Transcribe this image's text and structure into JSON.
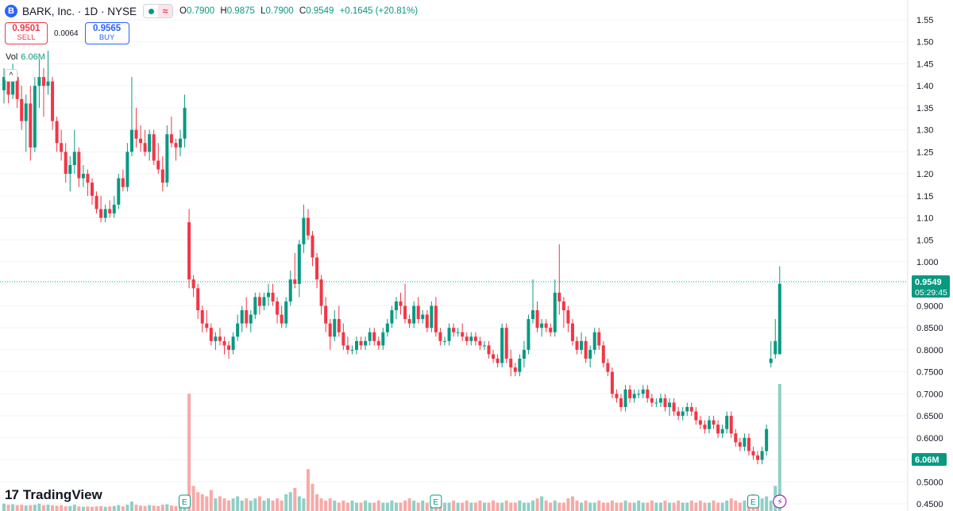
{
  "header": {
    "logo_letter": "B",
    "title": "BARK, Inc. · 1D · NYSE",
    "open_label": "O",
    "open": "0.7900",
    "high_label": "H",
    "high": "0.9875",
    "low_label": "L",
    "low": "0.7900",
    "close_label": "C",
    "close": "0.9549",
    "change": "+0.1645 (+20.81%)"
  },
  "trade": {
    "sell_price": "0.9501",
    "sell_label": "SELL",
    "spread": "0.0064",
    "buy_price": "0.9565",
    "buy_label": "BUY"
  },
  "volume": {
    "label": "Vol",
    "value": "6.06M"
  },
  "brand": {
    "logo": "17",
    "name": "TradingView"
  },
  "colors": {
    "up": "#089981",
    "down": "#f23645",
    "up_vol": "#8fcfc5",
    "down_vol": "#f7a9a7",
    "grid": "#f0f3fa"
  },
  "chart_data": {
    "type": "candlestick",
    "y_ticks": [
      "1.55",
      "1.50",
      "1.45",
      "1.40",
      "1.35",
      "1.30",
      "1.25",
      "1.20",
      "1.15",
      "1.10",
      "1.05",
      "1.000",
      "0.9500",
      "0.9000",
      "0.8500",
      "0.8000",
      "0.7500",
      "0.7000",
      "0.6500",
      "0.6000",
      "0.5500",
      "0.5000",
      "0.4500"
    ],
    "ylim": [
      0.45,
      1.55
    ],
    "last_price": "0.9549",
    "countdown": "05:29:45",
    "volume_last": "6.06M",
    "events": [
      {
        "bar": 41,
        "label": "E"
      },
      {
        "bar": 98,
        "label": "E"
      },
      {
        "bar": 170,
        "label": "E"
      }
    ],
    "current_bar_icon": "lightning-icon",
    "ohlc": [
      [
        1.39,
        1.44,
        1.36,
        1.42
      ],
      [
        1.42,
        1.43,
        1.36,
        1.38
      ],
      [
        1.38,
        1.45,
        1.37,
        1.42
      ],
      [
        1.42,
        1.43,
        1.35,
        1.37
      ],
      [
        1.37,
        1.4,
        1.3,
        1.32
      ],
      [
        1.32,
        1.38,
        1.25,
        1.36
      ],
      [
        1.36,
        1.4,
        1.23,
        1.26
      ],
      [
        1.26,
        1.42,
        1.25,
        1.4
      ],
      [
        1.4,
        1.46,
        1.35,
        1.42
      ],
      [
        1.42,
        1.44,
        1.33,
        1.4
      ],
      [
        1.4,
        1.48,
        1.38,
        1.41
      ],
      [
        1.41,
        1.42,
        1.3,
        1.32
      ],
      [
        1.32,
        1.33,
        1.25,
        1.27
      ],
      [
        1.27,
        1.3,
        1.23,
        1.25
      ],
      [
        1.25,
        1.27,
        1.18,
        1.2
      ],
      [
        1.2,
        1.24,
        1.16,
        1.22
      ],
      [
        1.22,
        1.3,
        1.2,
        1.25
      ],
      [
        1.25,
        1.26,
        1.17,
        1.19
      ],
      [
        1.19,
        1.22,
        1.17,
        1.2
      ],
      [
        1.2,
        1.21,
        1.15,
        1.18
      ],
      [
        1.18,
        1.19,
        1.13,
        1.15
      ],
      [
        1.15,
        1.16,
        1.11,
        1.12
      ],
      [
        1.12,
        1.15,
        1.09,
        1.1
      ],
      [
        1.1,
        1.13,
        1.09,
        1.12
      ],
      [
        1.12,
        1.14,
        1.1,
        1.11
      ],
      [
        1.11,
        1.15,
        1.1,
        1.13
      ],
      [
        1.13,
        1.2,
        1.12,
        1.19
      ],
      [
        1.19,
        1.21,
        1.16,
        1.17
      ],
      [
        1.17,
        1.27,
        1.16,
        1.25
      ],
      [
        1.25,
        1.42,
        1.24,
        1.3
      ],
      [
        1.3,
        1.35,
        1.26,
        1.28
      ],
      [
        1.28,
        1.31,
        1.25,
        1.27
      ],
      [
        1.27,
        1.3,
        1.24,
        1.25
      ],
      [
        1.25,
        1.3,
        1.23,
        1.29
      ],
      [
        1.29,
        1.3,
        1.22,
        1.23
      ],
      [
        1.23,
        1.27,
        1.2,
        1.21
      ],
      [
        1.21,
        1.24,
        1.16,
        1.18
      ],
      [
        1.18,
        1.31,
        1.17,
        1.29
      ],
      [
        1.29,
        1.33,
        1.26,
        1.27
      ],
      [
        1.27,
        1.28,
        1.23,
        1.26
      ],
      [
        1.26,
        1.3,
        1.24,
        1.28
      ],
      [
        1.28,
        1.38,
        1.26,
        1.35
      ],
      [
        1.09,
        1.12,
        0.94,
        0.96
      ],
      [
        0.96,
        0.97,
        0.92,
        0.94
      ],
      [
        0.94,
        0.95,
        0.87,
        0.89
      ],
      [
        0.89,
        0.9,
        0.84,
        0.86
      ],
      [
        0.86,
        0.89,
        0.84,
        0.85
      ],
      [
        0.85,
        0.86,
        0.81,
        0.82
      ],
      [
        0.82,
        0.84,
        0.8,
        0.83
      ],
      [
        0.83,
        0.85,
        0.81,
        0.82
      ],
      [
        0.82,
        0.83,
        0.79,
        0.81
      ],
      [
        0.81,
        0.82,
        0.78,
        0.8
      ],
      [
        0.8,
        0.84,
        0.79,
        0.83
      ],
      [
        0.83,
        0.88,
        0.82,
        0.86
      ],
      [
        0.86,
        0.9,
        0.84,
        0.89
      ],
      [
        0.89,
        0.92,
        0.85,
        0.86
      ],
      [
        0.86,
        0.89,
        0.84,
        0.88
      ],
      [
        0.88,
        0.93,
        0.87,
        0.92
      ],
      [
        0.92,
        0.93,
        0.88,
        0.9
      ],
      [
        0.9,
        0.93,
        0.89,
        0.92
      ],
      [
        0.92,
        0.95,
        0.9,
        0.93
      ],
      [
        0.93,
        0.95,
        0.9,
        0.91
      ],
      [
        0.91,
        0.92,
        0.86,
        0.88
      ],
      [
        0.88,
        0.9,
        0.85,
        0.86
      ],
      [
        0.86,
        0.92,
        0.85,
        0.91
      ],
      [
        0.91,
        0.98,
        0.9,
        0.96
      ],
      [
        0.96,
        1.02,
        0.94,
        0.95
      ],
      [
        0.95,
        1.05,
        0.92,
        1.04
      ],
      [
        1.04,
        1.13,
        1.02,
        1.1
      ],
      [
        1.1,
        1.12,
        1.05,
        1.06
      ],
      [
        1.06,
        1.07,
        0.99,
        1.01
      ],
      [
        1.01,
        1.02,
        0.94,
        0.96
      ],
      [
        0.96,
        0.97,
        0.88,
        0.9
      ],
      [
        0.9,
        0.92,
        0.84,
        0.86
      ],
      [
        0.86,
        0.87,
        0.8,
        0.83
      ],
      [
        0.83,
        0.89,
        0.82,
        0.87
      ],
      [
        0.87,
        0.9,
        0.83,
        0.84
      ],
      [
        0.84,
        0.86,
        0.8,
        0.81
      ],
      [
        0.81,
        0.83,
        0.79,
        0.8
      ],
      [
        0.8,
        0.81,
        0.79,
        0.8
      ],
      [
        0.8,
        0.83,
        0.79,
        0.82
      ],
      [
        0.82,
        0.83,
        0.8,
        0.81
      ],
      [
        0.81,
        0.83,
        0.8,
        0.82
      ],
      [
        0.82,
        0.85,
        0.81,
        0.84
      ],
      [
        0.84,
        0.85,
        0.81,
        0.82
      ],
      [
        0.82,
        0.83,
        0.8,
        0.81
      ],
      [
        0.81,
        0.85,
        0.8,
        0.84
      ],
      [
        0.84,
        0.87,
        0.83,
        0.86
      ],
      [
        0.86,
        0.9,
        0.85,
        0.89
      ],
      [
        0.89,
        0.92,
        0.87,
        0.91
      ],
      [
        0.91,
        0.93,
        0.88,
        0.9
      ],
      [
        0.9,
        0.95,
        0.86,
        0.87
      ],
      [
        0.87,
        0.88,
        0.85,
        0.86
      ],
      [
        0.86,
        0.91,
        0.85,
        0.9
      ],
      [
        0.9,
        0.92,
        0.86,
        0.87
      ],
      [
        0.87,
        0.89,
        0.86,
        0.88
      ],
      [
        0.88,
        0.89,
        0.84,
        0.85
      ],
      [
        0.85,
        0.91,
        0.84,
        0.9
      ],
      [
        0.9,
        0.92,
        0.83,
        0.84
      ],
      [
        0.84,
        0.85,
        0.81,
        0.82
      ],
      [
        0.82,
        0.83,
        0.81,
        0.82
      ],
      [
        0.82,
        0.86,
        0.81,
        0.85
      ],
      [
        0.85,
        0.86,
        0.83,
        0.84
      ],
      [
        0.84,
        0.85,
        0.83,
        0.84
      ],
      [
        0.84,
        0.86,
        0.82,
        0.83
      ],
      [
        0.83,
        0.84,
        0.81,
        0.82
      ],
      [
        0.82,
        0.84,
        0.81,
        0.83
      ],
      [
        0.83,
        0.84,
        0.81,
        0.82
      ],
      [
        0.82,
        0.83,
        0.8,
        0.81
      ],
      [
        0.81,
        0.82,
        0.8,
        0.81
      ],
      [
        0.81,
        0.82,
        0.78,
        0.79
      ],
      [
        0.79,
        0.8,
        0.77,
        0.78
      ],
      [
        0.78,
        0.79,
        0.76,
        0.77
      ],
      [
        0.77,
        0.86,
        0.76,
        0.85
      ],
      [
        0.85,
        0.86,
        0.77,
        0.78
      ],
      [
        0.78,
        0.8,
        0.74,
        0.76
      ],
      [
        0.76,
        0.77,
        0.74,
        0.75
      ],
      [
        0.75,
        0.79,
        0.74,
        0.78
      ],
      [
        0.78,
        0.82,
        0.76,
        0.8
      ],
      [
        0.8,
        0.88,
        0.79,
        0.87
      ],
      [
        0.87,
        0.96,
        0.86,
        0.89
      ],
      [
        0.89,
        0.91,
        0.84,
        0.85
      ],
      [
        0.85,
        0.87,
        0.83,
        0.86
      ],
      [
        0.86,
        0.87,
        0.84,
        0.85
      ],
      [
        0.85,
        0.86,
        0.83,
        0.84
      ],
      [
        0.84,
        0.96,
        0.83,
        0.93
      ],
      [
        0.93,
        1.04,
        0.88,
        0.91
      ],
      [
        0.91,
        0.92,
        0.85,
        0.89
      ],
      [
        0.89,
        0.9,
        0.84,
        0.86
      ],
      [
        0.86,
        0.87,
        0.81,
        0.82
      ],
      [
        0.82,
        0.83,
        0.79,
        0.8
      ],
      [
        0.8,
        0.84,
        0.79,
        0.82
      ],
      [
        0.82,
        0.83,
        0.77,
        0.78
      ],
      [
        0.78,
        0.81,
        0.76,
        0.8
      ],
      [
        0.8,
        0.85,
        0.79,
        0.84
      ],
      [
        0.84,
        0.85,
        0.8,
        0.81
      ],
      [
        0.81,
        0.82,
        0.76,
        0.77
      ],
      [
        0.77,
        0.78,
        0.74,
        0.75
      ],
      [
        0.75,
        0.76,
        0.69,
        0.7
      ],
      [
        0.7,
        0.71,
        0.68,
        0.69
      ],
      [
        0.69,
        0.7,
        0.66,
        0.67
      ],
      [
        0.67,
        0.72,
        0.66,
        0.71
      ],
      [
        0.71,
        0.72,
        0.68,
        0.69
      ],
      [
        0.69,
        0.71,
        0.68,
        0.7
      ],
      [
        0.7,
        0.71,
        0.69,
        0.7
      ],
      [
        0.7,
        0.72,
        0.69,
        0.71
      ],
      [
        0.71,
        0.72,
        0.68,
        0.69
      ],
      [
        0.69,
        0.7,
        0.67,
        0.68
      ],
      [
        0.68,
        0.69,
        0.67,
        0.68
      ],
      [
        0.68,
        0.7,
        0.67,
        0.69
      ],
      [
        0.69,
        0.7,
        0.66,
        0.67
      ],
      [
        0.67,
        0.69,
        0.65,
        0.68
      ],
      [
        0.68,
        0.69,
        0.65,
        0.66
      ],
      [
        0.66,
        0.67,
        0.64,
        0.65
      ],
      [
        0.65,
        0.67,
        0.64,
        0.66
      ],
      [
        0.66,
        0.68,
        0.65,
        0.67
      ],
      [
        0.67,
        0.68,
        0.65,
        0.66
      ],
      [
        0.66,
        0.67,
        0.63,
        0.64
      ],
      [
        0.64,
        0.65,
        0.62,
        0.63
      ],
      [
        0.63,
        0.64,
        0.61,
        0.62
      ],
      [
        0.62,
        0.65,
        0.61,
        0.64
      ],
      [
        0.64,
        0.65,
        0.62,
        0.63
      ],
      [
        0.63,
        0.64,
        0.6,
        0.61
      ],
      [
        0.61,
        0.63,
        0.6,
        0.62
      ],
      [
        0.62,
        0.66,
        0.61,
        0.65
      ],
      [
        0.65,
        0.66,
        0.6,
        0.61
      ],
      [
        0.61,
        0.62,
        0.58,
        0.59
      ],
      [
        0.59,
        0.6,
        0.57,
        0.58
      ],
      [
        0.58,
        0.61,
        0.57,
        0.6
      ],
      [
        0.6,
        0.61,
        0.56,
        0.57
      ],
      [
        0.57,
        0.58,
        0.55,
        0.56
      ],
      [
        0.56,
        0.57,
        0.54,
        0.55
      ],
      [
        0.55,
        0.58,
        0.54,
        0.57
      ],
      [
        0.57,
        0.63,
        0.56,
        0.62
      ],
      [
        0.77,
        0.82,
        0.76,
        0.78
      ],
      [
        0.79,
        0.87,
        0.78,
        0.82
      ],
      [
        0.79,
        0.99,
        0.79,
        0.95
      ]
    ],
    "volume": [
      0.35,
      0.3,
      0.32,
      0.28,
      0.3,
      0.26,
      0.28,
      0.3,
      0.35,
      0.28,
      0.3,
      0.27,
      0.25,
      0.28,
      0.22,
      0.24,
      0.3,
      0.22,
      0.2,
      0.22,
      0.2,
      0.22,
      0.24,
      0.2,
      0.22,
      0.24,
      0.28,
      0.22,
      0.3,
      0.45,
      0.3,
      0.26,
      0.24,
      0.28,
      0.26,
      0.24,
      0.3,
      0.32,
      0.26,
      0.24,
      0.26,
      0.35,
      5.6,
      1.2,
      0.9,
      0.8,
      0.7,
      1.0,
      0.6,
      0.7,
      0.6,
      0.5,
      0.6,
      0.7,
      0.5,
      0.6,
      0.5,
      0.6,
      0.7,
      0.5,
      0.6,
      0.5,
      0.6,
      0.5,
      0.8,
      0.9,
      1.1,
      0.7,
      0.6,
      2.0,
      1.3,
      0.8,
      0.6,
      0.5,
      0.6,
      0.5,
      0.4,
      0.5,
      0.4,
      0.5,
      0.4,
      0.4,
      0.5,
      0.4,
      0.4,
      0.5,
      0.4,
      0.4,
      0.5,
      0.4,
      0.4,
      0.5,
      0.6,
      0.5,
      0.4,
      0.5,
      0.4,
      0.4,
      0.5,
      0.5,
      0.4,
      0.4,
      0.5,
      0.4,
      0.4,
      0.5,
      0.4,
      0.4,
      0.5,
      0.4,
      0.4,
      0.5,
      0.4,
      0.4,
      0.5,
      0.4,
      0.4,
      0.5,
      0.4,
      0.4,
      0.5,
      0.6,
      0.7,
      0.5,
      0.4,
      0.5,
      0.4,
      0.4,
      0.6,
      0.7,
      0.5,
      0.4,
      0.5,
      0.4,
      0.4,
      0.5,
      0.4,
      0.4,
      0.5,
      0.4,
      0.4,
      0.5,
      0.4,
      0.4,
      0.5,
      0.4,
      0.4,
      0.5,
      0.4,
      0.4,
      0.5,
      0.4,
      0.4,
      0.5,
      0.4,
      0.4,
      0.5,
      0.4,
      0.5,
      0.4,
      0.4,
      0.5,
      0.4,
      0.4,
      0.5,
      0.6,
      0.5,
      0.4,
      0.5,
      0.6,
      0.8,
      0.7,
      0.6,
      0.7,
      0.5,
      1.2,
      6.06
    ]
  }
}
